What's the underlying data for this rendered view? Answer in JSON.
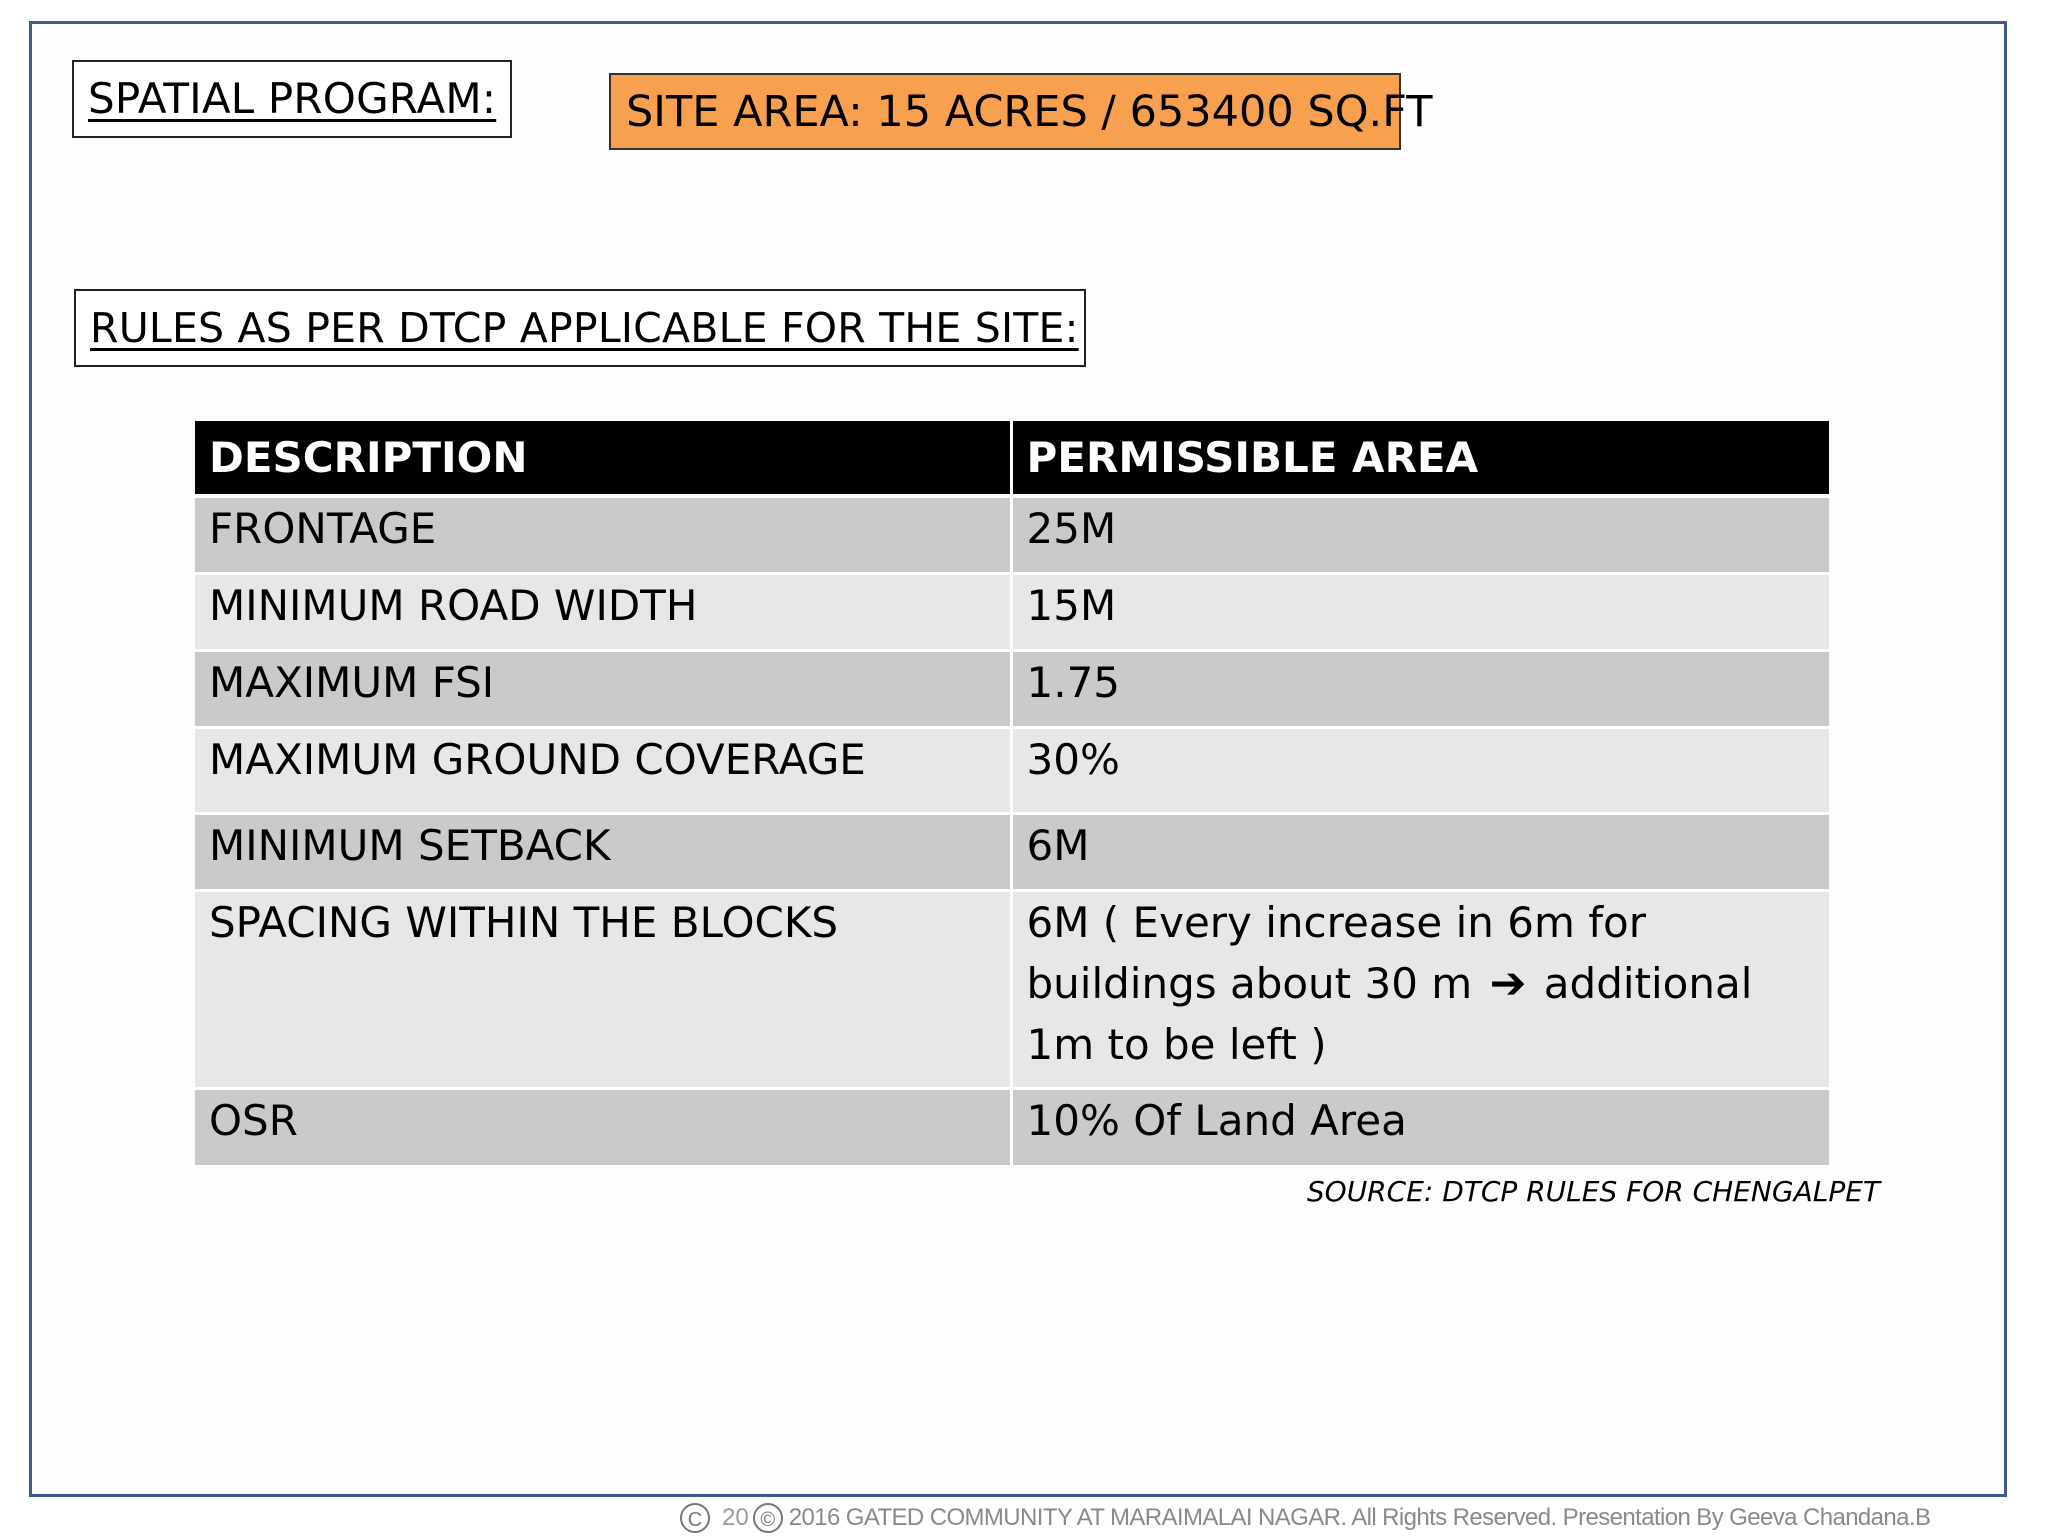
{
  "header": {
    "spatial_program_label": "SPATIAL PROGRAM:",
    "site_area_label": "SITE AREA: 15 ACRES / 653400 SQ.FT",
    "site_area_color": "#f7a04f"
  },
  "rules": {
    "heading": "RULES AS PER DTCP APPLICABLE FOR THE SITE:",
    "columns": [
      "DESCRIPTION",
      "PERMISSIBLE AREA"
    ],
    "rows": [
      {
        "description": "FRONTAGE",
        "value": "25M"
      },
      {
        "description": "MINIMUM ROAD WIDTH",
        "value": "15M"
      },
      {
        "description": "MAXIMUM FSI",
        "value": "1.75"
      },
      {
        "description": "MAXIMUM GROUND COVERAGE",
        "value": "30%"
      },
      {
        "description": "MINIMUM SETBACK",
        "value": "6M"
      },
      {
        "description": "SPACING WITHIN THE BLOCKS",
        "value_line1": "6M ( Every increase in 6m for",
        "value_line2a": "buildings about 30 m",
        "value_arrow": "➔",
        "value_line2b": "additional",
        "value_line3": "1m to be left )"
      },
      {
        "description": "OSR",
        "value": "10% Of Land Area"
      }
    ],
    "source": "SOURCE: DTCP RULES FOR CHENGALPET"
  },
  "footer": {
    "copyright_symbol": "C",
    "year_fragment": "20",
    "text": "2016 GATED COMMUNITY AT MARAIMALAI NAGAR. All Rights Reserved. Presentation By Geeva Chandana.B"
  }
}
